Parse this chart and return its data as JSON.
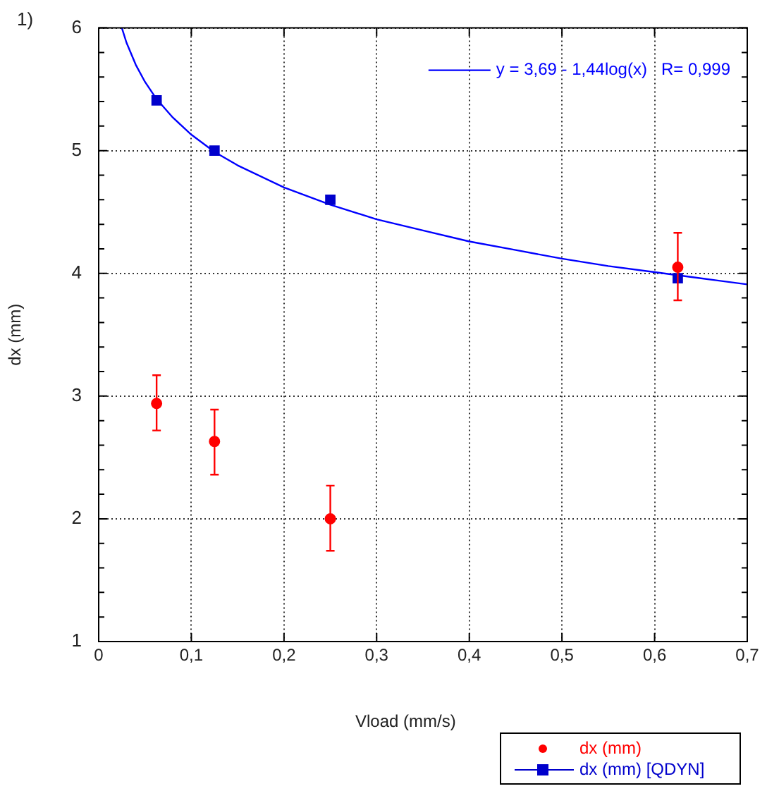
{
  "chart_data": {
    "type": "scatter",
    "title": "1)",
    "xlabel": "Vload (mm/s)",
    "ylabel": "dx (mm)",
    "x": [
      0.0625,
      0.125,
      0.25,
      0.625
    ],
    "series": [
      {
        "name": "dx (mm)",
        "type": "scatter",
        "color": "#ff0000",
        "marker": "circle",
        "values": [
          2.94,
          2.63,
          2.0,
          4.05
        ],
        "errors": [
          [
            2.72,
            3.17
          ],
          [
            2.36,
            2.89
          ],
          [
            1.74,
            2.27
          ],
          [
            3.78,
            4.33
          ]
        ]
      },
      {
        "name": "dx (mm) [QDYN]",
        "type": "scatter",
        "color": "#0000cc",
        "marker": "square",
        "values": [
          5.41,
          5.0,
          4.6,
          3.96
        ]
      },
      {
        "name": "y = 3,69 - 1,44log(x)   R= 0,999",
        "type": "line",
        "color": "#0000ff",
        "marker": "none",
        "x": [
          0.025,
          0.03,
          0.04,
          0.05,
          0.0625,
          0.08,
          0.1,
          0.125,
          0.15,
          0.2,
          0.25,
          0.3,
          0.35,
          0.4,
          0.45,
          0.5,
          0.55,
          0.6,
          0.65,
          0.7
        ],
        "values": [
          6.0,
          5.88,
          5.7,
          5.56,
          5.42,
          5.27,
          5.13,
          4.99,
          4.88,
          4.7,
          4.56,
          4.44,
          4.35,
          4.26,
          4.19,
          4.12,
          4.06,
          4.01,
          3.96,
          3.91
        ]
      }
    ],
    "xlim": [
      0,
      0.7
    ],
    "xticks": [
      0,
      {
        "value": 0.1,
        "label": "0,1"
      },
      {
        "value": 0.2,
        "label": "0,2"
      },
      {
        "value": 0.3,
        "label": "0,3"
      },
      {
        "value": 0.4,
        "label": "0,4"
      },
      {
        "value": 0.5,
        "label": "0,5"
      },
      {
        "value": 0.6,
        "label": "0,6"
      },
      {
        "value": 0.7,
        "label": "0,7"
      }
    ],
    "ylim": [
      1,
      6
    ],
    "yticks": [
      1,
      {
        "value": 1.2,
        "label": null
      },
      {
        "value": 1.4,
        "label": null
      },
      {
        "value": 1.6,
        "label": null
      },
      {
        "value": 1.8,
        "label": null
      },
      2,
      {
        "value": 2.2,
        "label": null
      },
      {
        "value": 2.4,
        "label": null
      },
      {
        "value": 2.6,
        "label": null
      },
      {
        "value": 2.8,
        "label": null
      },
      3,
      {
        "value": 3.2,
        "label": null
      },
      {
        "value": 3.4,
        "label": null
      },
      {
        "value": 3.6,
        "label": null
      },
      {
        "value": 3.8,
        "label": null
      },
      4,
      {
        "value": 4.2,
        "label": null
      },
      {
        "value": 4.4,
        "label": null
      },
      {
        "value": 4.6,
        "label": null
      },
      {
        "value": 4.8,
        "label": null
      },
      5,
      {
        "value": 5.2,
        "label": null
      },
      {
        "value": 5.4,
        "label": null
      },
      {
        "value": 5.6,
        "label": null
      },
      {
        "value": 5.8,
        "label": null
      },
      6
    ],
    "grid": true,
    "legend": "bottom right"
  }
}
